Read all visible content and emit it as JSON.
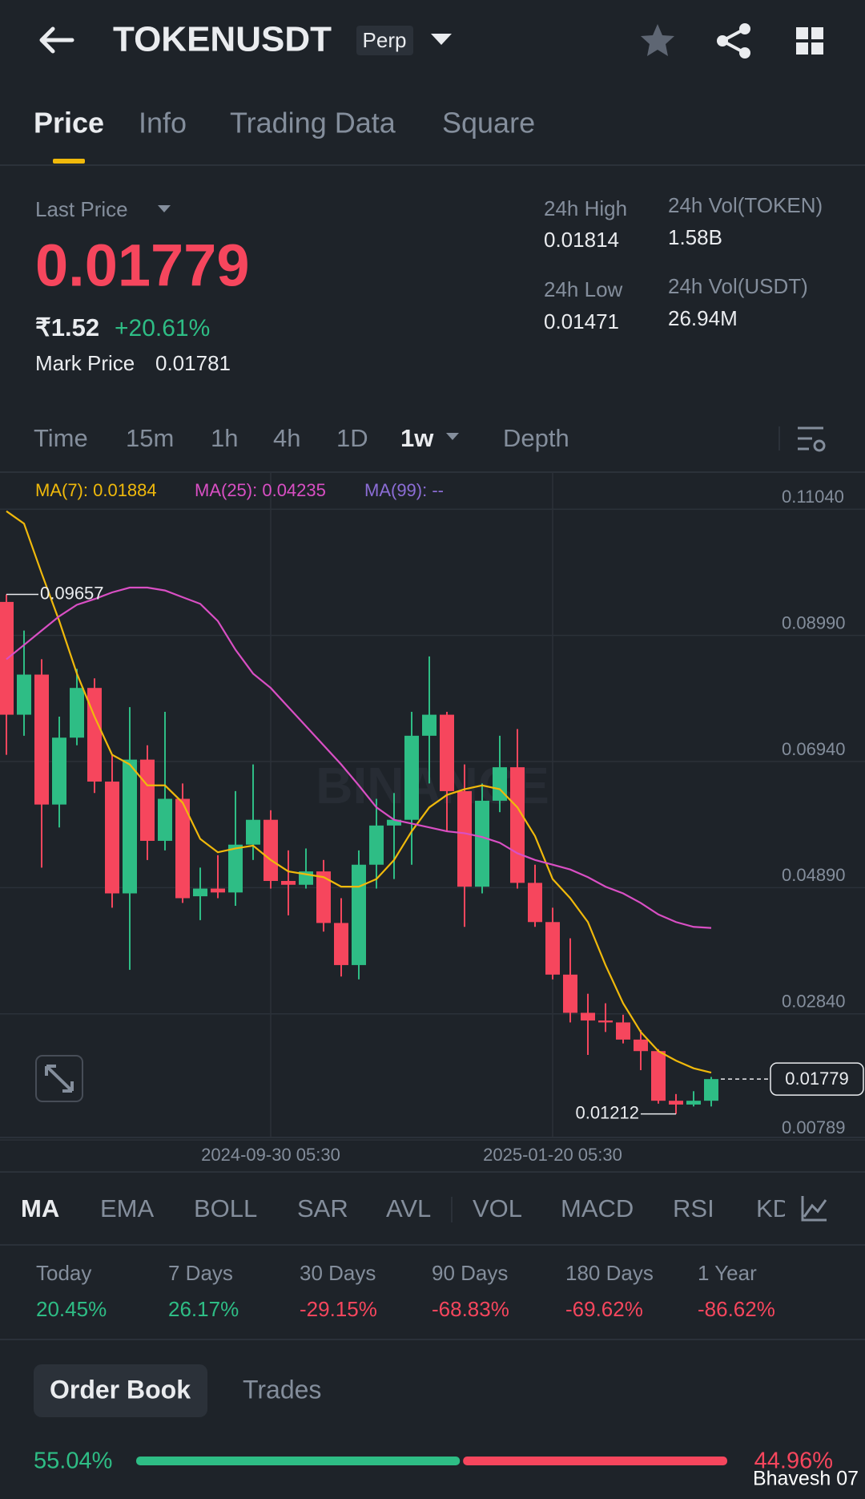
{
  "header": {
    "symbol": "TOKENUSDT",
    "badge": "Perp"
  },
  "tabs": [
    "Price",
    "Info",
    "Trading Data",
    "Square"
  ],
  "stats": {
    "last_price_label": "Last Price",
    "last_price": "0.01779",
    "inr": "₹1.52",
    "change": "+20.61%",
    "mark_price_label": "Mark Price",
    "mark_price": "0.01781",
    "high_label": "24h High",
    "high": "0.01814",
    "low_label": "24h Low",
    "low": "0.01471",
    "vol_token_label": "24h Vol(TOKEN)",
    "vol_token": "1.58B",
    "vol_usdt_label": "24h Vol(USDT)",
    "vol_usdt": "26.94M"
  },
  "intervals": [
    "Time",
    "15m",
    "1h",
    "4h",
    "1D",
    "1w",
    "Depth"
  ],
  "chart_data": {
    "type": "candlestick",
    "watermark": "BINANCE",
    "categories": [
      null,
      null,
      null,
      null,
      null,
      null,
      null,
      null,
      null,
      null,
      null,
      null,
      null,
      null,
      null,
      "2024-09-30 05:30",
      null,
      null,
      null,
      null,
      null,
      null,
      null,
      null,
      null,
      null,
      null,
      null,
      null,
      null,
      null,
      "2025-01-20 05:30",
      null,
      null,
      null,
      null,
      null,
      null,
      null,
      null,
      null
    ],
    "open": [
      0.09534,
      0.07701,
      0.08353,
      0.06241,
      0.07328,
      0.08136,
      0.06614,
      0.04797,
      0.06971,
      0.05651,
      0.06334,
      0.0475,
      0.04875,
      0.04812,
      0.05589,
      0.05993,
      0.04999,
      0.04937,
      0.05154,
      0.04316,
      0.03632,
      0.05263,
      0.059,
      0.05993,
      0.07359,
      0.07701,
      0.06459,
      0.04906,
      0.06303,
      0.06847,
      0.04968,
      0.04331,
      0.03477,
      0.02856,
      0.02731,
      0.027,
      0.02421,
      0.02234,
      0.01427,
      0.01365,
      0.01427
    ],
    "high": [
      0.09657,
      0.09068,
      0.08602,
      0.0767,
      0.08446,
      0.08291,
      0.07049,
      0.07825,
      0.07204,
      0.07748,
      0.06583,
      0.05216,
      0.05418,
      0.06459,
      0.06893,
      0.06148,
      0.05496,
      0.05527,
      0.0534,
      0.04719,
      0.05496,
      0.06334,
      0.06428,
      0.07748,
      0.08648,
      0.07748,
      0.06893,
      0.06583,
      0.07359,
      0.07468,
      0.05263,
      0.04564,
      0.04067,
      0.03166,
      0.03011,
      0.02825,
      0.02576,
      0.02266,
      0.01536,
      0.01582,
      0.01814
    ],
    "low": [
      0.07049,
      0.07359,
      0.05216,
      0.05869,
      0.07204,
      0.06428,
      0.04564,
      0.03555,
      0.0534,
      0.05496,
      0.04642,
      0.04362,
      0.04719,
      0.04595,
      0.0534,
      0.04875,
      0.0444,
      0.04875,
      0.04176,
      0.03446,
      0.03399,
      0.04875,
      0.0503,
      0.05263,
      0.06583,
      0.05806,
      0.04253,
      0.04797,
      0.06117,
      0.04875,
      0.04253,
      0.03399,
      0.027,
      0.02172,
      0.02545,
      0.02359,
      0.01924,
      0.0138,
      0.01212,
      0.01334,
      0.01334
    ],
    "close": [
      0.07701,
      0.08353,
      0.06241,
      0.07328,
      0.08136,
      0.06614,
      0.04797,
      0.06971,
      0.05651,
      0.06334,
      0.04719,
      0.04875,
      0.04812,
      0.05589,
      0.05993,
      0.04999,
      0.04937,
      0.05154,
      0.04316,
      0.03632,
      0.05263,
      0.059,
      0.05993,
      0.07359,
      0.07701,
      0.06459,
      0.04906,
      0.06303,
      0.06847,
      0.04968,
      0.04331,
      0.03477,
      0.02856,
      0.02731,
      0.027,
      0.02421,
      0.02234,
      0.01427,
      0.01365,
      0.01427,
      0.01779
    ],
    "up_color": "#2ebd85",
    "down_color": "#f6465d",
    "series": [
      {
        "name": "MA(7): 0.01884",
        "color": "#f0b90b",
        "values": [
          0.11009,
          0.10807,
          0.09999,
          0.09223,
          0.08369,
          0.0767,
          0.07049,
          0.06893,
          0.06552,
          0.06552,
          0.06272,
          0.05682,
          0.05465,
          0.05527,
          0.05573,
          0.0534,
          0.05154,
          0.05108,
          0.05061,
          0.04906,
          0.04906,
          0.0503,
          0.0534,
          0.05806,
          0.06195,
          0.06397,
          0.0649,
          0.06552,
          0.0649,
          0.06195,
          0.05729,
          0.0503,
          0.04719,
          0.04331,
          0.03632,
          0.03011,
          0.02545,
          0.02234,
          0.02079,
          0.01955,
          0.01884
        ]
      },
      {
        "name": "MA(25): 0.04235",
        "color": "#d94fc4",
        "values": [
          0.08602,
          0.08835,
          0.09068,
          0.09301,
          0.09487,
          0.0958,
          0.09689,
          0.09767,
          0.09767,
          0.0972,
          0.09611,
          0.09503,
          0.09223,
          0.08757,
          0.08369,
          0.08136,
          0.07825,
          0.07515,
          0.07204,
          0.06893,
          0.06552,
          0.06195,
          0.05993,
          0.05931,
          0.05869,
          0.05806,
          0.05775,
          0.05713,
          0.0562,
          0.05449,
          0.0534,
          0.05263,
          0.05185,
          0.05061,
          0.04906,
          0.04797,
          0.04642,
          0.04455,
          0.04331,
          0.04253,
          0.04235
        ]
      }
    ],
    "ma99_label": "MA(99): --",
    "ma99_color": "#8c6dd6",
    "ylim": [
      0.0083,
      0.1163
    ],
    "yticks": [
      {
        "value": 0.1104,
        "label": "0.11040"
      },
      {
        "value": 0.0899,
        "label": "0.08990"
      },
      {
        "value": 0.0694,
        "label": "0.06940"
      },
      {
        "value": 0.0489,
        "label": "0.04890"
      },
      {
        "value": 0.0284,
        "label": "0.02840"
      },
      {
        "value": 0.00789,
        "label": "0.00789"
      }
    ],
    "grid": true
  },
  "indicators": [
    "MA",
    "EMA",
    "BOLL",
    "SAR",
    "AVL",
    "VOL",
    "MACD",
    "RSI",
    "KD"
  ],
  "performance": [
    {
      "period": "Today",
      "change": "20.45%"
    },
    {
      "period": "7 Days",
      "change": "26.17%"
    },
    {
      "period": "30 Days",
      "change": "-29.15%"
    },
    {
      "period": "90 Days",
      "change": "-68.83%"
    },
    {
      "period": "180 Days",
      "change": "-69.62%"
    },
    {
      "period": "1 Year",
      "change": "-86.62%"
    }
  ],
  "order_tabs": [
    "Order Book",
    "Trades"
  ],
  "ratio": {
    "buy": 55.04,
    "buy_label": "55.04%",
    "sell": 44.96,
    "sell_label": "44.96%"
  },
  "user_watermark": "Bhavesh 07"
}
